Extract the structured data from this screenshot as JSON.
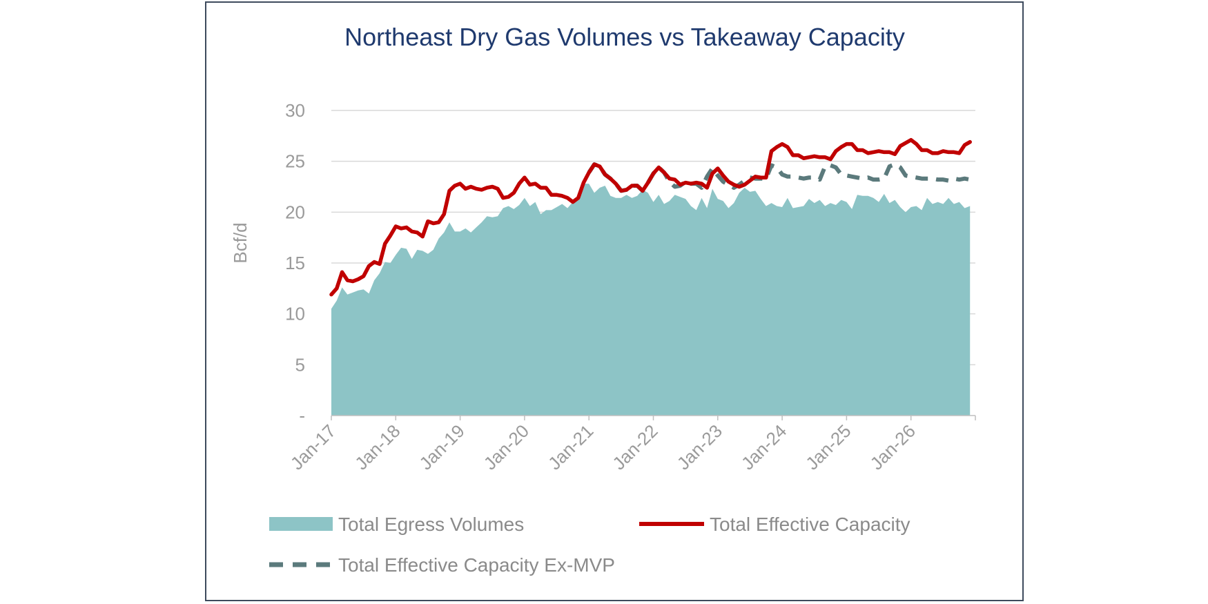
{
  "chart_data": {
    "type": "area",
    "title": "Northeast Dry Gas Volumes vs Takeaway Capacity",
    "xlabel": "",
    "ylabel": "Bcf/d",
    "ylim": [
      0,
      30
    ],
    "yticks": [
      0,
      5,
      10,
      15,
      20,
      25,
      30
    ],
    "ytick_labels": [
      "-",
      "5",
      "10",
      "15",
      "20",
      "25",
      "30"
    ],
    "xticks": [
      "Jan-17",
      "Jan-18",
      "Jan-19",
      "Jan-20",
      "Jan-21",
      "Jan-22",
      "Jan-23",
      "Jan-24",
      "Jan-25",
      "Jan-26"
    ],
    "x_start": "Jan-17",
    "x_months": 120,
    "grid": true,
    "legend_position": "bottom",
    "colors": {
      "volumes": "#8dc4c6",
      "capacity": "#c00000",
      "ex_mvp": "#5b7a7c",
      "title": "#1f3a6e",
      "grid": "#d9d9d9"
    },
    "series": [
      {
        "name": "Total Egress Volumes",
        "style": "area",
        "x": [
          0,
          1,
          2,
          3,
          4,
          5,
          6,
          7,
          8,
          9,
          10,
          11,
          12,
          13,
          14,
          15,
          16,
          17,
          18,
          19,
          20,
          21,
          22,
          23,
          24,
          25,
          26,
          27,
          28,
          29,
          30,
          31,
          32,
          33,
          34,
          35,
          36,
          37,
          38,
          39,
          40,
          41,
          42,
          43,
          44,
          45,
          46,
          47,
          48,
          49,
          50,
          51,
          52,
          53,
          54,
          55,
          56,
          57,
          58,
          59,
          60,
          61,
          62,
          63,
          64,
          65,
          66,
          67,
          68,
          69,
          70,
          71,
          72,
          73,
          74,
          75,
          76,
          77,
          78,
          79,
          80,
          81,
          82,
          83,
          84,
          85,
          86,
          87,
          88,
          89,
          90,
          91,
          92,
          93,
          94,
          95,
          96,
          97,
          98,
          99,
          100,
          101,
          102,
          103,
          104,
          105,
          106,
          107,
          108,
          109,
          110,
          111,
          112,
          113,
          114,
          115,
          116,
          117,
          118,
          119
        ],
        "values": [
          10.5,
          11.3,
          12.6,
          11.9,
          12.1,
          12.3,
          12.4,
          12.0,
          13.3,
          14.0,
          15.1,
          15.0,
          15.8,
          16.5,
          16.4,
          15.4,
          16.3,
          16.2,
          15.9,
          16.3,
          17.4,
          18.0,
          19.0,
          18.1,
          18.1,
          18.4,
          18.0,
          18.5,
          19.0,
          19.6,
          19.5,
          19.6,
          20.4,
          20.6,
          20.3,
          20.7,
          21.4,
          20.6,
          21.0,
          19.8,
          20.2,
          20.2,
          20.5,
          20.8,
          20.4,
          21.0,
          21.7,
          22.8,
          22.8,
          21.9,
          22.4,
          22.6,
          21.6,
          21.4,
          21.4,
          21.7,
          21.4,
          21.6,
          22.2,
          21.9,
          21.0,
          21.7,
          20.8,
          21.1,
          21.7,
          21.5,
          21.3,
          20.6,
          20.2,
          21.4,
          20.4,
          22.3,
          21.3,
          21.1,
          20.4,
          20.9,
          21.9,
          22.4,
          22.0,
          22.1,
          21.3,
          20.6,
          20.9,
          20.6,
          20.5,
          21.4,
          20.4,
          20.5,
          20.6,
          21.3,
          20.9,
          21.2,
          20.6,
          20.9,
          20.7,
          21.2,
          21.0,
          20.3,
          21.7,
          21.6,
          21.6,
          21.4,
          21.0,
          21.8,
          20.9,
          21.2,
          20.5,
          20.0,
          20.5,
          20.6,
          20.2,
          21.4,
          20.8,
          21.0,
          20.8,
          21.4,
          20.8,
          21.0,
          20.4,
          20.6
        ]
      },
      {
        "name": "Total Effective Capacity",
        "style": "line",
        "x": [
          0,
          1,
          2,
          3,
          4,
          5,
          6,
          7,
          8,
          9,
          10,
          11,
          12,
          13,
          14,
          15,
          16,
          17,
          18,
          19,
          20,
          21,
          22,
          23,
          24,
          25,
          26,
          27,
          28,
          29,
          30,
          31,
          32,
          33,
          34,
          35,
          36,
          37,
          38,
          39,
          40,
          41,
          42,
          43,
          44,
          45,
          46,
          47,
          48,
          49,
          50,
          51,
          52,
          53,
          54,
          55,
          56,
          57,
          58,
          59,
          60,
          61,
          62,
          63,
          64,
          65,
          66,
          67,
          68,
          69,
          70,
          71,
          72,
          73,
          74,
          75,
          76,
          77,
          78,
          79,
          80,
          81,
          82,
          83,
          84,
          85,
          86,
          87,
          88,
          89,
          90,
          91,
          92,
          93,
          94,
          95,
          96,
          97,
          98,
          99,
          100,
          101,
          102,
          103,
          104,
          105,
          106,
          107,
          108,
          109,
          110,
          111,
          112,
          113,
          114,
          115,
          116,
          117,
          118,
          119
        ],
        "values": [
          11.9,
          12.5,
          14.1,
          13.3,
          13.2,
          13.4,
          13.7,
          14.7,
          15.1,
          14.9,
          16.9,
          17.7,
          18.6,
          18.4,
          18.5,
          18.1,
          18.0,
          17.6,
          19.1,
          18.9,
          19.0,
          19.8,
          22.1,
          22.6,
          22.8,
          22.3,
          22.5,
          22.3,
          22.2,
          22.4,
          22.5,
          22.3,
          21.4,
          21.5,
          21.9,
          22.8,
          23.4,
          22.7,
          22.8,
          22.4,
          22.4,
          21.7,
          21.7,
          21.6,
          21.4,
          21.0,
          21.4,
          22.9,
          23.9,
          24.7,
          24.5,
          23.7,
          23.3,
          22.8,
          22.1,
          22.2,
          22.6,
          22.6,
          22.1,
          22.9,
          23.8,
          24.4,
          23.9,
          23.3,
          23.2,
          22.7,
          22.9,
          22.8,
          22.9,
          22.8,
          22.4,
          23.8,
          24.3,
          23.6,
          23.0,
          22.7,
          22.5,
          22.7,
          23.1,
          23.5,
          23.4,
          23.4,
          26.0,
          26.4,
          26.7,
          26.4,
          25.6,
          25.6,
          25.3,
          25.4,
          25.5,
          25.4,
          25.4,
          25.2,
          26.0,
          26.4,
          26.7,
          26.7,
          26.1,
          26.1,
          25.8,
          25.9,
          26.0,
          25.9,
          25.9,
          25.7,
          26.5,
          26.8,
          27.1,
          26.7,
          26.1,
          26.1,
          25.8,
          25.8,
          26.0,
          25.9,
          25.9,
          25.8,
          26.6,
          26.9
        ]
      },
      {
        "name": "Total Effective Capacity Ex-MVP",
        "style": "dashed",
        "x": [
          48,
          49,
          50,
          51,
          52,
          53,
          54,
          55,
          56,
          57,
          58,
          59,
          60,
          61,
          62,
          63,
          64,
          65,
          66,
          67,
          68,
          69,
          70,
          71,
          72,
          73,
          74,
          75,
          76,
          77,
          78,
          79,
          80,
          81,
          82,
          83,
          84,
          85,
          86,
          87,
          88,
          89,
          90,
          91,
          92,
          93,
          94,
          95,
          96,
          97,
          98,
          99,
          100,
          101,
          102,
          103,
          104,
          105,
          106,
          107,
          108,
          109,
          110,
          111,
          112,
          113,
          114,
          115,
          116,
          117,
          118,
          119
        ],
        "values": [
          23.9,
          24.7,
          24.5,
          23.7,
          23.3,
          22.8,
          22.1,
          22.2,
          22.6,
          22.6,
          22.1,
          22.9,
          23.8,
          24.4,
          23.9,
          23.0,
          22.5,
          22.6,
          23.0,
          22.8,
          22.8,
          22.4,
          23.5,
          24.3,
          23.6,
          23.0,
          22.7,
          22.4,
          22.7,
          23.1,
          23.4,
          23.3,
          23.3,
          23.3,
          24.6,
          24.4,
          23.7,
          23.5,
          23.5,
          23.4,
          23.3,
          23.4,
          23.4,
          23.2,
          24.5,
          24.6,
          24.4,
          23.7,
          23.6,
          23.5,
          23.4,
          23.3,
          23.4,
          23.2,
          23.2,
          23.3,
          24.5,
          24.7,
          24.4,
          23.6,
          23.5,
          23.4,
          23.3,
          23.3,
          23.3,
          23.2,
          23.2,
          23.1,
          23.3,
          23.2,
          23.3,
          23.2
        ]
      }
    ]
  }
}
